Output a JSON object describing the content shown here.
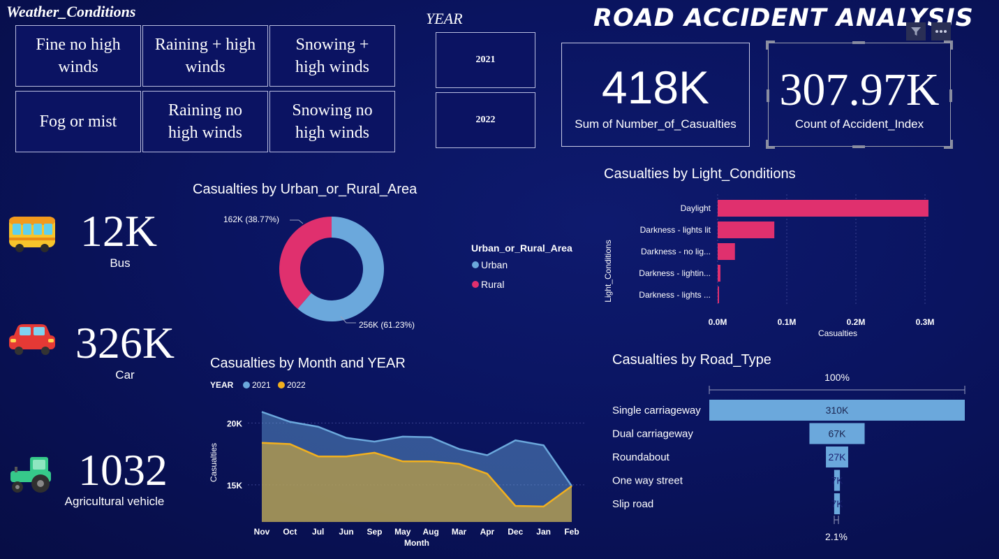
{
  "weather": {
    "title": "Weather_Conditions",
    "tiles": [
      "Fine no high winds",
      "Raining + high winds",
      "Snowing + high winds",
      "Fog or mist",
      "Raining no high winds",
      "Snowing no high winds"
    ]
  },
  "year": {
    "title": "YEAR",
    "options": [
      "2021",
      "2022"
    ]
  },
  "header": {
    "title": "ROAD ACCIDENT ANALYSIS"
  },
  "kpis": {
    "casualties": {
      "value": "418K",
      "label": "Sum of Number_of_Casualties"
    },
    "accidents": {
      "value": "307.97K",
      "label": "Count of Accident_Index"
    }
  },
  "vehicles": [
    {
      "value": "12K",
      "label": "Bus",
      "icon": "bus-icon"
    },
    {
      "value": "326K",
      "label": "Car",
      "icon": "car-icon"
    },
    {
      "value": "1032",
      "label": "Agricultural vehicle",
      "icon": "tractor-icon"
    }
  ],
  "donut": {
    "title": "Casualties by Urban_or_Rural_Area",
    "legend_title": "Urban_or_Rural_Area",
    "label_rural": "162K (38.77%)",
    "label_urban": "256K (61.23%)",
    "chart_data": {
      "type": "pie",
      "categories": [
        "Urban",
        "Rural"
      ],
      "values": [
        256,
        162
      ],
      "percent": [
        61.23,
        38.77
      ],
      "colors": [
        "#6ba8dc",
        "#e0306e"
      ]
    }
  },
  "light": {
    "title": "Casualties by Light_Conditions",
    "chart_data": {
      "type": "bar",
      "orientation": "horizontal",
      "categories": [
        "Daylight",
        "Darkness - lights lit",
        "Darkness - no lig...",
        "Darkness - lightin...",
        "Darkness - lights ..."
      ],
      "values": [
        305000,
        82000,
        25000,
        4000,
        1500
      ],
      "xlabel": "Casualties",
      "ylabel": "Light_Conditions",
      "xticks": [
        "0.0M",
        "0.1M",
        "0.2M",
        "0.3M"
      ],
      "xlim": [
        0,
        300000
      ],
      "color": "#e0306e"
    }
  },
  "monthly": {
    "title": "Casualties by Month and YEAR",
    "legend_title": "YEAR",
    "chart_data": {
      "type": "area",
      "categories": [
        "Nov",
        "Oct",
        "Jul",
        "Jun",
        "Sep",
        "May",
        "Aug",
        "Mar",
        "Apr",
        "Dec",
        "Jan",
        "Feb"
      ],
      "series": [
        {
          "name": "2021",
          "color": "#6ba8dc",
          "values": [
            20900,
            20100,
            19700,
            18800,
            18500,
            18900,
            18850,
            17900,
            17400,
            18600,
            18200,
            14900
          ]
        },
        {
          "name": "2022",
          "color": "#f2b01e",
          "values": [
            18400,
            18300,
            17300,
            17300,
            17600,
            16900,
            16900,
            16700,
            15900,
            13300,
            13250,
            14900
          ]
        }
      ],
      "yticks": [
        "20K",
        "15K"
      ],
      "ylim": [
        12000,
        22000
      ],
      "xlabel": "Month",
      "ylabel": "Casualties"
    }
  },
  "road": {
    "title": "Casualties by Road_Type",
    "top_label": "100%",
    "bottom_label": "2.1%",
    "chart_data": {
      "type": "bar",
      "subtype": "funnel",
      "categories": [
        "Single carriageway",
        "Dual carriageway",
        "Roundabout",
        "One way street",
        "Slip road"
      ],
      "values": [
        310000,
        67000,
        27000,
        7000,
        7000
      ],
      "labels": [
        "310K",
        "67K",
        "27K",
        "7K",
        "7K"
      ],
      "color": "#6ba8dc"
    }
  }
}
